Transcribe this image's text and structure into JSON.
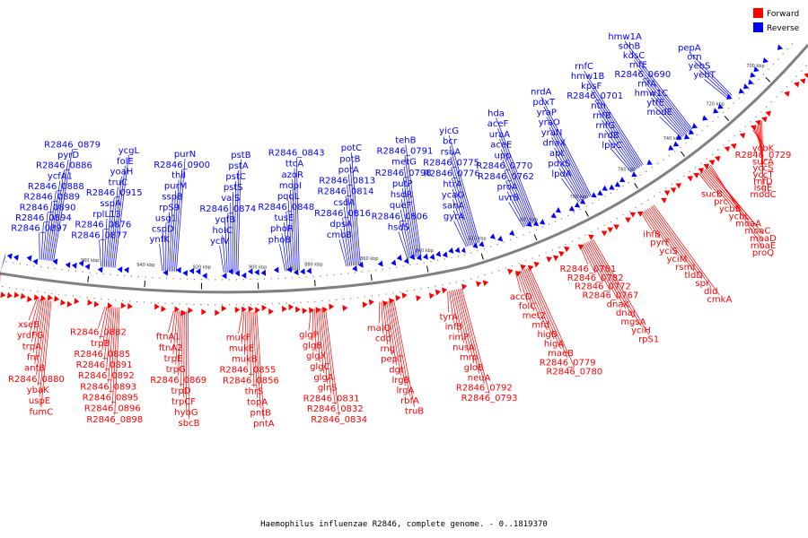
{
  "caption": "Haemophilus influenzae R2846, complete genome. - 0..1819370",
  "legend": [
    {
      "label": "Forward",
      "color": "#ff0000"
    },
    {
      "label": "Reverse",
      "color": "#0000ff"
    }
  ],
  "colors": {
    "forward": "#ff0000",
    "reverse": "#0000ff",
    "backbone": "#808080"
  },
  "ticks": [
    "960 kbp",
    "940 kbp",
    "920 kbp",
    "900 kbp",
    "880 kbp",
    "860 kbp",
    "840 kbp",
    "820 kbp",
    "800 kbp",
    "780 kbp",
    "760 kbp",
    "740 kbp",
    "720 kbp",
    "700 kbp"
  ],
  "reverse_labels": [
    "R2846_0897",
    "R2846_0894",
    "R2846_0890",
    "R2846_0889",
    "R2846_0888",
    "ycfA1",
    "R2846_0886",
    "pyrD",
    "R2846_0879",
    "R2846_0877",
    "R2846_0876",
    "rplL13",
    "sspA",
    "R2846_0915",
    "truC",
    "yoaH",
    "folE",
    "ycgL",
    "ynfK",
    "cspD",
    "usg1",
    "rpS9",
    "sspB",
    "purM",
    "thiI",
    "R2846_0900",
    "purN",
    "ycIV",
    "hoIC",
    "yqfB",
    "R2846_0874",
    "valS",
    "pstS",
    "pstC",
    "pstA",
    "pstB",
    "phoB",
    "phoR",
    "tusE",
    "R2846_0848",
    "pqqL",
    "mopI",
    "azoR",
    "ttcA",
    "R2846_0843",
    "cmoB",
    "dpsA",
    "R2846_0816",
    "csdA",
    "R2846_0814",
    "R2846_0813",
    "potA",
    "potB",
    "potC",
    "hsdS",
    "R2846_0806",
    "queF",
    "hsdR",
    "putP",
    "R2846_0798",
    "metG",
    "R2846_0791",
    "tehB",
    "gyrA",
    "sanA",
    "ycaO",
    "htrA",
    "R2846_0776",
    "R2846_0775",
    "rsuA",
    "bcr",
    "yicG",
    "uvrB",
    "proA",
    "R2846_0762",
    "R2846_0770",
    "upp",
    "aceE",
    "uraA",
    "aceF",
    "hda",
    "lpdA",
    "pdxS",
    "apt",
    "dnaX",
    "yraN",
    "yraO",
    "yraP",
    "pdxT",
    "nrdA",
    "lppC",
    "nrdB",
    "rnfG",
    "rnfB",
    "nth",
    "R2846_0701",
    "kpsF",
    "hmw1B",
    "rnfC",
    "modE",
    "ytfE",
    "hmw1C",
    "rnfA",
    "R2846_0690",
    "rnfE",
    "kdsC",
    "sohB",
    "hmw1A",
    "yebT",
    "yebS",
    "orn",
    "pepA"
  ],
  "forward_labels": [
    "xseB",
    "yrdFG",
    "trpA",
    "fnr",
    "antB",
    "R2846_0880",
    "ybaK",
    "uspE",
    "fumC",
    "R2846_0882",
    "trpB",
    "R2846_0885",
    "R2846_0891",
    "R2846_0892",
    "R2846_0893",
    "R2846_0895",
    "R2846_0896",
    "R2846_0898",
    "ftnA1",
    "ftnA2",
    "trpE",
    "trpG",
    "R2846_0869",
    "trpD",
    "trpCF",
    "hybG",
    "sbcB",
    "mukF",
    "mukE",
    "mukB",
    "R2846_0855",
    "R2846_0856",
    "thrS",
    "topA",
    "pntB",
    "pntA",
    "glgP",
    "glgB",
    "glgX",
    "glgC",
    "glgA",
    "glnS",
    "R2846_0831",
    "R2846_0832",
    "R2846_0834",
    "malQ",
    "cdd",
    "rng",
    "pepT",
    "dgt",
    "lrgB",
    "lrgA",
    "rbfA",
    "truB",
    "tyrA",
    "infB",
    "rimP",
    "nusA",
    "mrp",
    "gloB",
    "neuA",
    "R2846_0792",
    "R2846_0793",
    "accD",
    "folC",
    "met2",
    "mfd",
    "higB",
    "higA",
    "maeB",
    "R2846_0779",
    "R2846_0780",
    "R2846_0781",
    "R2846_0782",
    "R2846_0772",
    "R2846_0767",
    "dnaK",
    "dnaJ",
    "mgsA",
    "yciH",
    "rpS1",
    "ihfB",
    "pyrF",
    "yciS",
    "yciM",
    "rsmI",
    "tldD",
    "spr",
    "dld",
    "cmkA",
    "sucB",
    "prc",
    "ycbB",
    "ycbL",
    "moaA",
    "moaC",
    "moaD",
    "moaE",
    "proQ",
    "ycbK",
    "R2846_0729",
    "sucA",
    "yccS",
    "yccT",
    "rnfD",
    "lsgE",
    "modC"
  ]
}
